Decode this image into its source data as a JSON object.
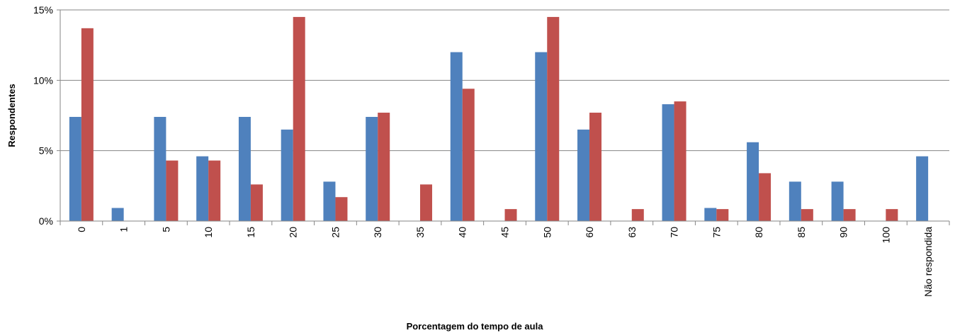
{
  "chart_data": {
    "type": "bar",
    "x_label": "Porcentagem do tempo de aula",
    "y_label": "Respondentes",
    "categories": [
      "0",
      "1",
      "5",
      "10",
      "15",
      "20",
      "25",
      "30",
      "35",
      "40",
      "45",
      "50",
      "60",
      "63",
      "70",
      "75",
      "80",
      "85",
      "90",
      "100",
      "Não respondida"
    ],
    "series": [
      {
        "color": "#4f81bd",
        "values": [
          7.4,
          0.93,
          7.4,
          4.6,
          7.4,
          6.5,
          2.8,
          7.4,
          0,
          12.0,
          0,
          12.0,
          6.5,
          0,
          8.3,
          0.93,
          5.6,
          2.8,
          2.8,
          0,
          4.6
        ]
      },
      {
        "color": "#c0504d",
        "values": [
          13.7,
          0,
          4.3,
          4.3,
          2.6,
          14.5,
          1.7,
          7.7,
          2.6,
          9.4,
          0.85,
          14.5,
          7.7,
          0.85,
          8.5,
          0.85,
          3.4,
          0.85,
          0.85,
          0.85,
          0
        ]
      }
    ],
    "ylim": [
      0,
      15
    ],
    "yticks": [
      {
        "value": 0,
        "label": "0%"
      },
      {
        "value": 5,
        "label": "5%"
      },
      {
        "value": 10,
        "label": "10%"
      },
      {
        "value": 15,
        "label": "15%"
      }
    ],
    "grid": true
  }
}
